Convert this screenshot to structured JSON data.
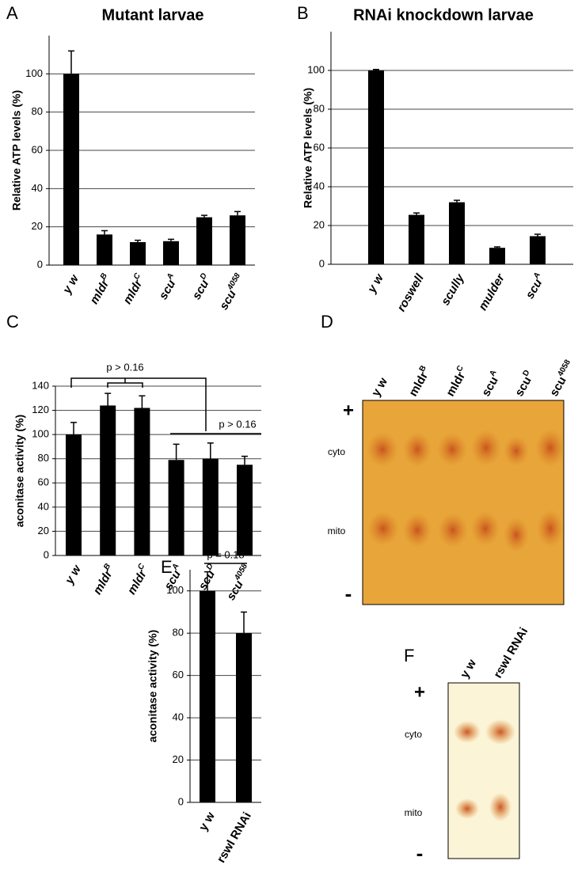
{
  "chart_data": [
    {
      "type": "bar",
      "panel": "A",
      "title": "Mutant larvae",
      "y_label": "Relative ATP levels  (%)",
      "categories": [
        "y w",
        "mldr",
        "mldr",
        "scu",
        "scu",
        "scu"
      ],
      "category_sup": [
        null,
        "B",
        "C",
        "A",
        "D",
        "4058"
      ],
      "values": [
        100,
        16,
        12,
        12.5,
        25,
        26
      ],
      "errors": [
        12,
        2,
        1,
        1,
        1,
        2
      ],
      "color": "#000000",
      "ylim": [
        0,
        120
      ],
      "yticks": [
        0,
        20,
        40,
        60,
        80,
        100
      ],
      "grid": true
    },
    {
      "type": "bar",
      "panel": "B",
      "title": "RNAi knockdown larvae",
      "y_label": "Relative ATP levels  (%)",
      "categories": [
        "y w",
        "roswell",
        "scully",
        "mulder",
        "scu"
      ],
      "category_sup": [
        null,
        null,
        null,
        null,
        "A"
      ],
      "values": [
        100,
        25.5,
        32,
        8.5,
        14.5
      ],
      "errors": [
        0.5,
        1,
        1,
        0.5,
        1
      ],
      "color": "#000000",
      "ylim": [
        0,
        120
      ],
      "yticks": [
        0,
        20,
        40,
        60,
        80,
        100
      ],
      "grid": true
    },
    {
      "type": "bar",
      "panel": "C",
      "y_label": "aconitase activity  (%)",
      "categories": [
        "y w",
        "mldr",
        "mldr",
        "scu",
        "scu",
        "scu"
      ],
      "category_sup": [
        null,
        "B",
        "C",
        "A",
        "D",
        "4058"
      ],
      "values": [
        100,
        124,
        122,
        79,
        80,
        75
      ],
      "errors": [
        10,
        10,
        10,
        13,
        13,
        7
      ],
      "color": "#000000",
      "ylim": [
        0,
        140
      ],
      "yticks": [
        0,
        20,
        40,
        60,
        80,
        100,
        120,
        140
      ],
      "grid": true,
      "annotations": [
        "p > 0.16",
        "p > 0.16"
      ]
    },
    {
      "type": "bar",
      "panel": "E",
      "y_label": "aconitase activity  (%)",
      "categories": [
        "y w",
        "rswl RNAi"
      ],
      "category_sup": [
        null,
        null
      ],
      "values": [
        100,
        80
      ],
      "errors": [
        9,
        10
      ],
      "color": "#000000",
      "ylim": [
        0,
        110
      ],
      "yticks": [
        0,
        20,
        40,
        60,
        80,
        100
      ],
      "grid": true,
      "annotations": [
        "p = 0.18"
      ]
    }
  ],
  "gels": [
    {
      "panel": "D",
      "lanes": [
        "y w",
        "mldr",
        "mldr",
        "scu",
        "scu",
        "scu"
      ],
      "lane_sup": [
        null,
        "B",
        "C",
        "A",
        "D",
        "4058"
      ],
      "labels": [
        "+",
        "cyto",
        "mito",
        "-"
      ]
    },
    {
      "panel": "F",
      "lanes": [
        "y w",
        "rswl RNAi"
      ],
      "lane_sup": [
        null,
        null
      ],
      "labels": [
        "+",
        "cyto",
        "mito",
        "-"
      ]
    }
  ]
}
